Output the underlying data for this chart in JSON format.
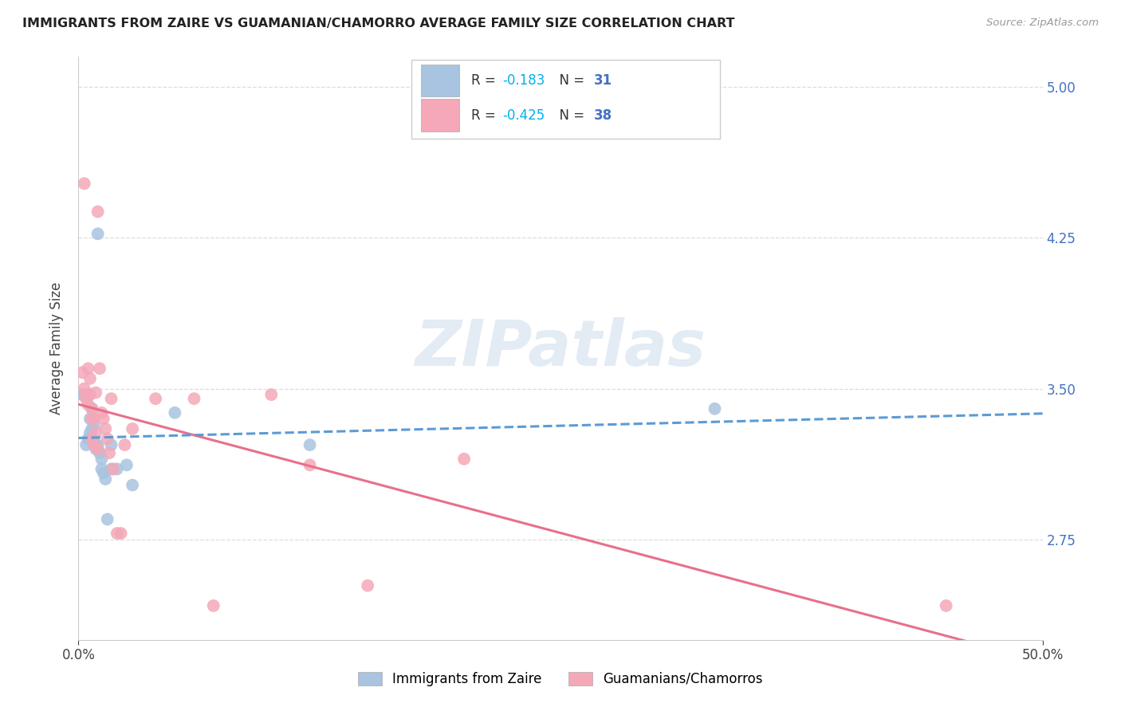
{
  "title": "IMMIGRANTS FROM ZAIRE VS GUAMANIAN/CHAMORRO AVERAGE FAMILY SIZE CORRELATION CHART",
  "source": "Source: ZipAtlas.com",
  "ylabel": "Average Family Size",
  "xlim": [
    0.0,
    0.5
  ],
  "ylim": [
    2.25,
    5.15
  ],
  "yticks": [
    2.75,
    3.5,
    4.25,
    5.0
  ],
  "xticks": [
    0.0,
    0.5
  ],
  "xtick_labels": [
    "0.0%",
    "50.0%"
  ],
  "blue_R": -0.183,
  "blue_N": 31,
  "pink_R": -0.425,
  "pink_N": 38,
  "blue_label": "Immigrants from Zaire",
  "pink_label": "Guamanians/Chamorros",
  "blue_color": "#a8c4e0",
  "pink_color": "#f4a8b8",
  "blue_line_color": "#5b9bd5",
  "pink_line_color": "#e8708a",
  "blue_points": [
    [
      0.002,
      3.47
    ],
    [
      0.003,
      3.47
    ],
    [
      0.004,
      3.22
    ],
    [
      0.005,
      3.47
    ],
    [
      0.005,
      3.25
    ],
    [
      0.006,
      3.35
    ],
    [
      0.006,
      3.28
    ],
    [
      0.007,
      3.4
    ],
    [
      0.007,
      3.3
    ],
    [
      0.007,
      3.25
    ],
    [
      0.008,
      3.32
    ],
    [
      0.008,
      3.22
    ],
    [
      0.009,
      3.22
    ],
    [
      0.009,
      3.2
    ],
    [
      0.01,
      3.22
    ],
    [
      0.01,
      3.2
    ],
    [
      0.01,
      4.27
    ],
    [
      0.011,
      3.18
    ],
    [
      0.012,
      3.15
    ],
    [
      0.012,
      3.1
    ],
    [
      0.013,
      3.08
    ],
    [
      0.014,
      3.05
    ],
    [
      0.015,
      2.85
    ],
    [
      0.017,
      3.1
    ],
    [
      0.017,
      3.22
    ],
    [
      0.02,
      3.1
    ],
    [
      0.025,
      3.12
    ],
    [
      0.028,
      3.02
    ],
    [
      0.05,
      3.38
    ],
    [
      0.12,
      3.22
    ],
    [
      0.33,
      3.4
    ]
  ],
  "pink_points": [
    [
      0.002,
      3.58
    ],
    [
      0.003,
      3.5
    ],
    [
      0.003,
      4.52
    ],
    [
      0.004,
      3.47
    ],
    [
      0.004,
      3.45
    ],
    [
      0.005,
      3.6
    ],
    [
      0.005,
      3.42
    ],
    [
      0.006,
      3.55
    ],
    [
      0.006,
      3.47
    ],
    [
      0.007,
      3.4
    ],
    [
      0.007,
      3.35
    ],
    [
      0.007,
      3.25
    ],
    [
      0.008,
      3.22
    ],
    [
      0.008,
      3.35
    ],
    [
      0.009,
      3.48
    ],
    [
      0.009,
      3.28
    ],
    [
      0.01,
      3.2
    ],
    [
      0.01,
      4.38
    ],
    [
      0.011,
      3.6
    ],
    [
      0.012,
      3.38
    ],
    [
      0.013,
      3.35
    ],
    [
      0.014,
      3.3
    ],
    [
      0.015,
      3.25
    ],
    [
      0.016,
      3.18
    ],
    [
      0.017,
      3.45
    ],
    [
      0.018,
      3.1
    ],
    [
      0.02,
      2.78
    ],
    [
      0.022,
      2.78
    ],
    [
      0.024,
      3.22
    ],
    [
      0.028,
      3.3
    ],
    [
      0.04,
      3.45
    ],
    [
      0.06,
      3.45
    ],
    [
      0.07,
      2.42
    ],
    [
      0.1,
      3.47
    ],
    [
      0.12,
      3.12
    ],
    [
      0.15,
      2.52
    ],
    [
      0.2,
      3.15
    ],
    [
      0.45,
      2.42
    ]
  ],
  "watermark": "ZIPatlas",
  "background_color": "#ffffff",
  "grid_color": "#dddddd"
}
